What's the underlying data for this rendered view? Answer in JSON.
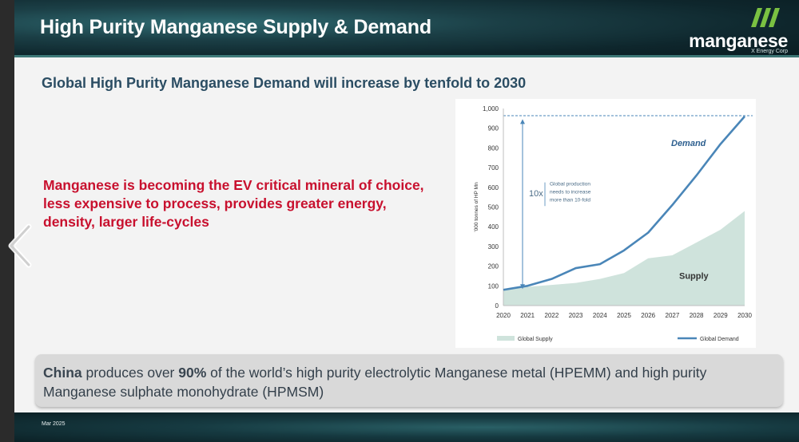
{
  "header": {
    "title": "High Purity Manganese Supply & Demand"
  },
  "logo": {
    "word": "manganese",
    "sub": "X Energy Corp",
    "icon": "m-logo-icon"
  },
  "subtitle": "Global High Purity Manganese Demand will increase by tenfold to 2030",
  "lead": "Manganese is becoming the EV critical mineral of choice, less expensive to process, provides greater energy, density, larger life-cycles",
  "callout": {
    "china": "China",
    "text1": " produces over ",
    "pct": "90%",
    "text2": " of the world’s high purity electrolytic Manganese metal (HPEMM) and high purity Manganese sulphate monohydrate (HPMSM)"
  },
  "footer": {
    "date": "Mar 2025"
  },
  "nav": {
    "prev_icon": "chevron-left-icon"
  },
  "colors": {
    "demand": "#4a86b8",
    "supply": "#cfe3dc",
    "lead": "#c8102e",
    "title": "#2b4d63"
  },
  "chart_data": {
    "type": "area",
    "x": [
      2020,
      2021,
      2022,
      2023,
      2024,
      2025,
      2026,
      2027,
      2028,
      2029,
      2030
    ],
    "series": [
      {
        "name": "Global Demand",
        "kind": "line",
        "values": [
          80,
          100,
          135,
          190,
          210,
          280,
          370,
          510,
          660,
          820,
          960
        ]
      },
      {
        "name": "Global Supply",
        "kind": "area",
        "values": [
          80,
          95,
          105,
          115,
          135,
          165,
          240,
          255,
          320,
          385,
          480
        ]
      }
    ],
    "ylabel": "'000 tonnes of HP Mn",
    "ylim": [
      0,
      1000
    ],
    "yticks": [
      0,
      100,
      200,
      300,
      400,
      500,
      600,
      700,
      800,
      900,
      "1,000"
    ],
    "yticks_values": [
      0,
      100,
      200,
      300,
      400,
      500,
      600,
      700,
      800,
      900,
      1000
    ],
    "annotations": {
      "demand_label": "Demand",
      "supply_label": "Supply",
      "multiplier": "10x",
      "note_lines": [
        "Global production",
        "needs to increase",
        "more than 10-fold"
      ]
    },
    "legend": [
      {
        "label": "Global Supply",
        "kind": "area"
      },
      {
        "label": "Global Demand",
        "kind": "line"
      }
    ],
    "legend_position": "bottom"
  }
}
